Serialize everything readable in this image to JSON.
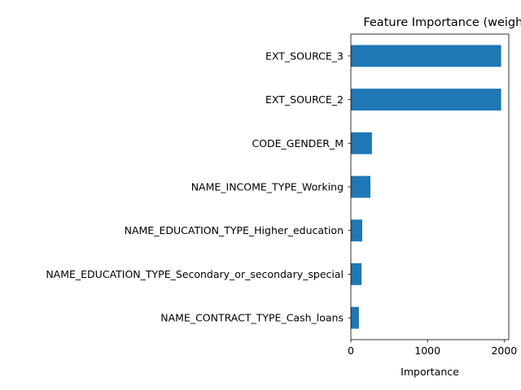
{
  "chart_data": {
    "type": "bar",
    "orientation": "horizontal",
    "title": "Feature Importance (weight)",
    "xlabel": "Importance",
    "ylabel": "",
    "categories": [
      "EXT_SOURCE_3",
      "EXT_SOURCE_2",
      "CODE_GENDER_M",
      "NAME_INCOME_TYPE_Working",
      "NAME_EDUCATION_TYPE_Higher_education",
      "NAME_EDUCATION_TYPE_Secondary_or_secondary_special",
      "NAME_CONTRACT_TYPE_Cash_loans"
    ],
    "values": [
      1960,
      1960,
      275,
      255,
      148,
      140,
      105
    ],
    "xlim": [
      0,
      2060
    ],
    "xticks": [
      0,
      1000,
      2000
    ],
    "xtick_labels": [
      "0",
      "1000",
      "2000"
    ],
    "bar_color": "#1f77b4",
    "grid": false,
    "legend": "none"
  }
}
